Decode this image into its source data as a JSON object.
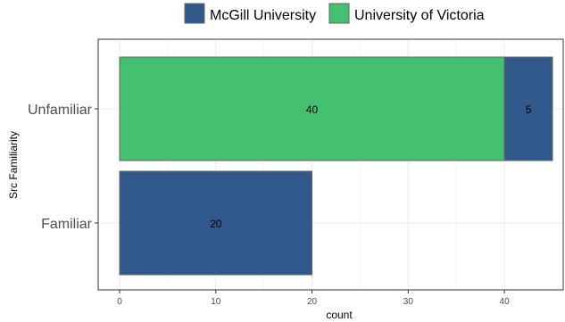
{
  "chart_data": {
    "type": "bar",
    "orientation": "horizontal",
    "stacked": true,
    "categories": [
      "Unfamiliar",
      "Familiar"
    ],
    "series": [
      {
        "name": "McGill University",
        "color": "#31598b",
        "values": [
          5,
          20
        ]
      },
      {
        "name": "University of Victoria",
        "color": "#45bf70",
        "values": [
          40,
          0
        ]
      }
    ],
    "data_labels": {
      "Unfamiliar": {
        "University of Victoria": "40",
        "McGill University": "5"
      },
      "Familiar": {
        "McGill University": "20"
      }
    },
    "xlabel": "count",
    "ylabel": "Src Familiarity",
    "xlim": [
      0,
      45
    ],
    "xticks": [
      0,
      10,
      20,
      30,
      40
    ],
    "xtick_labels": [
      "0",
      "10",
      "20",
      "30",
      "40"
    ],
    "grid": true,
    "legend_position": "top"
  }
}
